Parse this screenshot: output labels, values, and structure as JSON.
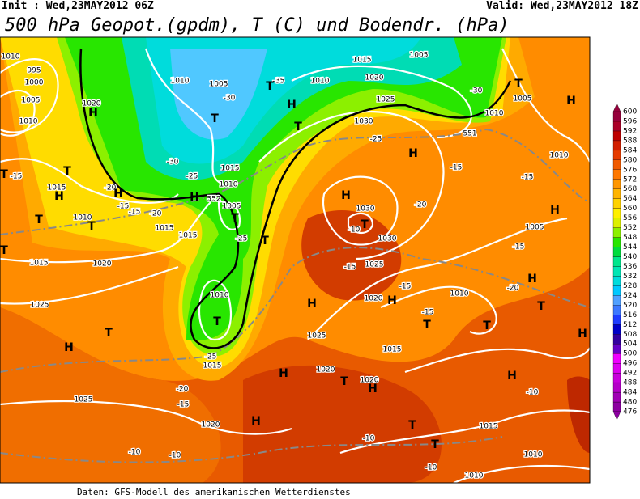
{
  "header": {
    "init": "Init : Wed,23MAY2012 06Z",
    "valid": "Valid: Wed,23MAY2012 18Z",
    "title": "500 hPa Geopot.(gpdm), T (C) und Bodendr. (hPa)"
  },
  "footer": "Daten: GFS-Modell des amerikanischen Wetterdienstes",
  "map_labels": [
    "995",
    "1000",
    "1005",
    "1010",
    "1020",
    "H",
    "1010",
    "1005",
    "1010",
    "1015",
    "1005",
    "1020",
    "1025",
    "-35",
    "-30",
    "-30",
    "-25",
    "1015",
    "1010",
    "H",
    "T",
    "T",
    "H",
    "T",
    "1030",
    "-25",
    "H",
    "-15",
    "H",
    "1030",
    "T",
    "-10",
    "1030",
    "1025",
    "-15",
    "-15",
    "1020",
    "H",
    "H",
    "1025",
    "1015",
    "T",
    "1010",
    "-20",
    "H",
    "T",
    "T",
    "H",
    "T",
    "H",
    "1005",
    "-30",
    "-20",
    "1005",
    "-15",
    "-15",
    "H",
    "1010",
    "T",
    "1005",
    "T",
    "-25",
    "1015",
    "1010",
    "T",
    "-25",
    "1015",
    "H",
    "1020",
    "T",
    "1020",
    "H",
    "-20",
    "-15",
    "H",
    "T",
    "T",
    "H",
    "1020",
    "-20",
    "-15",
    "1025",
    "1025",
    "H",
    "T",
    "1020",
    "1015",
    "T",
    "1010",
    "T",
    "1015",
    "H",
    "T",
    "H",
    "-20",
    "-15",
    "1015",
    "-15",
    "1010",
    "-10",
    "-10",
    "-10",
    "-10",
    "1010",
    "1015",
    "-10",
    "1010",
    "-15",
    "1010",
    "T",
    "T",
    "552",
    "551"
  ],
  "colorbar": {
    "ticks": [
      476,
      480,
      484,
      488,
      492,
      496,
      500,
      504,
      508,
      512,
      516,
      520,
      524,
      528,
      532,
      536,
      540,
      544,
      548,
      552,
      556,
      560,
      564,
      568,
      572,
      576,
      580,
      584,
      588,
      592,
      596,
      600
    ],
    "colors": [
      "#8c00a0",
      "#a000b4",
      "#b400c8",
      "#c800dc",
      "#dc00f0",
      "#f000ff",
      "#6400c8",
      "#3200a0",
      "#0000c8",
      "#1e3cff",
      "#3c78ff",
      "#50a0ff",
      "#00c8ff",
      "#00dcdc",
      "#00e6b4",
      "#00e68c",
      "#00dc3c",
      "#28e600",
      "#8cf000",
      "#dcf000",
      "#fff000",
      "#ffd200",
      "#ffb400",
      "#ff9600",
      "#ff7800",
      "#f05a00",
      "#e63c00",
      "#d21e00",
      "#be0000",
      "#aa0028",
      "#96003c"
    ]
  }
}
